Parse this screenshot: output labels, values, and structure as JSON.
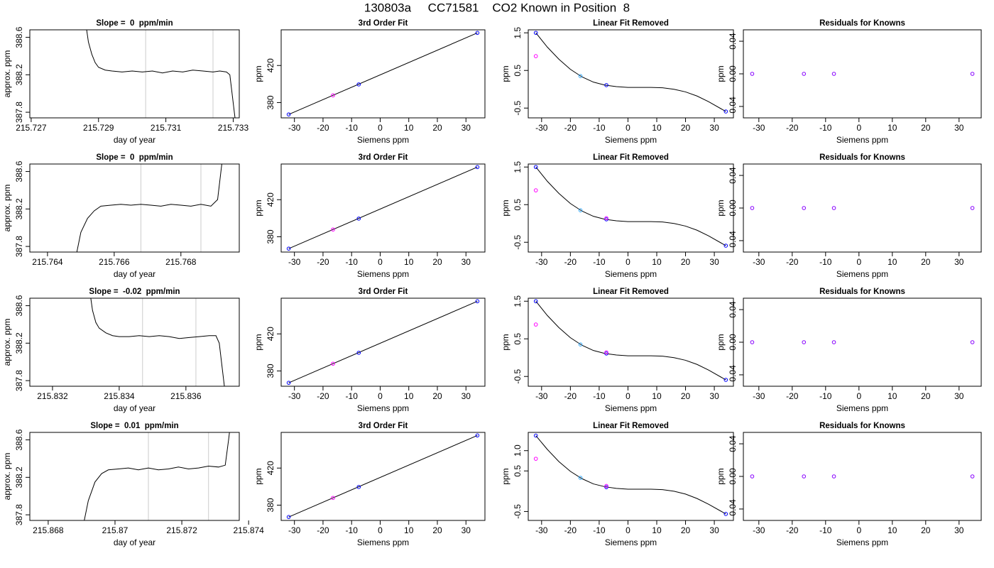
{
  "title": "130803a     CC71581    CO2 Known in Position  8",
  "chart_data": [
    {
      "type": "line",
      "title": "Slope =  0  ppm/min",
      "xlabel": "day of year",
      "ylabel": "approx. ppm",
      "color": "#000000",
      "x": [
        215.7286,
        215.7287,
        215.7288,
        215.7289,
        215.729,
        215.7292,
        215.7294,
        215.7297,
        215.73,
        215.7303,
        215.7306,
        215.7309,
        215.7312,
        215.7315,
        215.7318,
        215.7321,
        215.7324,
        215.7326,
        215.7328,
        215.7329,
        215.733,
        215.7331
      ],
      "values": [
        388.8,
        388.55,
        388.42,
        388.33,
        388.28,
        388.25,
        388.24,
        388.23,
        388.24,
        388.23,
        388.24,
        388.22,
        388.24,
        388.23,
        388.25,
        388.24,
        388.23,
        388.24,
        388.23,
        388.2,
        387.9,
        387.6
      ],
      "vlines": [
        215.7304,
        215.7324
      ],
      "vline_color": "#cccccc",
      "xlim": [
        215.72696,
        215.73318
      ],
      "xticks": [
        215.727,
        215.729,
        215.731,
        215.733
      ],
      "ylim": [
        387.74,
        388.68
      ],
      "yticks": [
        387.8,
        388.2,
        388.6
      ]
    },
    {
      "type": "scatter",
      "title": "3rd Order Fit",
      "xlabel": "Siemens ppm",
      "ylabel": "ppm",
      "series": [
        {
          "mode": "line",
          "color": "#000000",
          "x": [
            -32,
            34
          ],
          "values": [
            367.2,
            455.2
          ]
        },
        {
          "mode": "points",
          "color": "#0000ff",
          "x": [
            -32,
            -7.5,
            34
          ],
          "values": [
            367.2,
            399.6,
            455.2
          ]
        },
        {
          "mode": "points",
          "color": "#ff00ff",
          "x": [
            -16.5
          ],
          "values": [
            387.8
          ]
        }
      ],
      "xlim": [
        -34.64,
        36.64
      ],
      "xticks": [
        -30,
        -20,
        -10,
        0,
        10,
        20,
        30
      ],
      "ylim": [
        363.5,
        458.5
      ],
      "yticks": [
        380,
        420
      ]
    },
    {
      "type": "scatter",
      "title": "Linear Fit Removed",
      "xlabel": "Siemens ppm",
      "ylabel": "ppm",
      "series": [
        {
          "mode": "line",
          "color": "#000000",
          "x": [
            -32,
            -28,
            -24,
            -20,
            -16,
            -12,
            -8,
            -4,
            0,
            4,
            8,
            12,
            16,
            20,
            24,
            28,
            34
          ],
          "values": [
            1.5,
            1.12,
            0.8,
            0.53,
            0.33,
            0.19,
            0.11,
            0.07,
            0.05,
            0.05,
            0.05,
            0.04,
            0.0,
            -0.07,
            -0.18,
            -0.33,
            -0.59
          ]
        },
        {
          "mode": "points",
          "color": "#0000ff",
          "x": [
            -32,
            -7.5,
            34
          ],
          "values": [
            1.5,
            0.11,
            -0.59
          ]
        },
        {
          "mode": "points",
          "color": "#33aaff",
          "x": [
            -16.5
          ],
          "values": [
            0.35
          ]
        },
        {
          "mode": "points",
          "color": "#ff00ff",
          "x": [
            -32
          ],
          "values": [
            0.88
          ]
        }
      ],
      "xlim": [
        -34.64,
        36.64
      ],
      "xticks": [
        -30,
        -20,
        -10,
        0,
        10,
        20,
        30
      ],
      "ylim": [
        -0.76,
        1.58
      ],
      "yticks": [
        -0.5,
        0.5,
        1.5
      ]
    },
    {
      "type": "scatter",
      "title": "Residuals for Knowns",
      "xlabel": "Siemens ppm",
      "ylabel": "ppm",
      "series": [
        {
          "mode": "points",
          "color": "#8800ff",
          "x": [
            -32,
            -16.5,
            -7.5,
            34
          ],
          "values": [
            0,
            0,
            0,
            0
          ]
        }
      ],
      "xlim": [
        -34.64,
        36.64
      ],
      "xticks": [
        -30,
        -20,
        -10,
        0,
        10,
        20,
        30
      ],
      "ylim": [
        -0.054,
        0.054
      ],
      "yticks": [
        -0.04,
        {
          "value": 0,
          "label": "0.00"
        },
        0.04
      ]
    },
    {
      "type": "line",
      "title": "Slope =  0  ppm/min",
      "xlabel": "day of year",
      "ylabel": "approx. ppm",
      "color": "#000000",
      "x": [
        215.7648,
        215.765,
        215.7652,
        215.7654,
        215.7656,
        215.7659,
        215.7662,
        215.7665,
        215.7668,
        215.7671,
        215.7674,
        215.7677,
        215.768,
        215.7683,
        215.7686,
        215.7689,
        215.7691,
        215.7692,
        215.7693
      ],
      "values": [
        387.6,
        387.95,
        388.1,
        388.18,
        388.23,
        388.24,
        388.25,
        388.24,
        388.25,
        388.24,
        388.23,
        388.25,
        388.24,
        388.23,
        388.25,
        388.23,
        388.3,
        388.6,
        388.9
      ],
      "vlines": [
        215.7668,
        215.7686
      ],
      "vline_color": "#cccccc",
      "xlim": [
        215.76347,
        215.76975
      ],
      "xticks": [
        215.764,
        215.766,
        215.768
      ],
      "ylim": [
        387.74,
        388.68
      ],
      "yticks": [
        387.8,
        388.2,
        388.6
      ]
    },
    {
      "type": "scatter",
      "title": "3rd Order Fit",
      "xlabel": "Siemens ppm",
      "ylabel": "ppm",
      "series": [
        {
          "mode": "line",
          "color": "#000000",
          "x": [
            -32,
            34
          ],
          "values": [
            367.2,
            455.2
          ]
        },
        {
          "mode": "points",
          "color": "#0000ff",
          "x": [
            -32,
            -7.5,
            34
          ],
          "values": [
            367.2,
            399.6,
            455.2
          ]
        },
        {
          "mode": "points",
          "color": "#ff00ff",
          "x": [
            -16.5
          ],
          "values": [
            387.8
          ]
        }
      ],
      "xlim": [
        -34.64,
        36.64
      ],
      "xticks": [
        -30,
        -20,
        -10,
        0,
        10,
        20,
        30
      ],
      "ylim": [
        363.5,
        458.5
      ],
      "yticks": [
        380,
        420
      ]
    },
    {
      "type": "scatter",
      "title": "Linear Fit Removed",
      "xlabel": "Siemens ppm",
      "ylabel": "ppm",
      "series": [
        {
          "mode": "line",
          "color": "#000000",
          "x": [
            -32,
            -28,
            -24,
            -20,
            -16,
            -12,
            -8,
            -4,
            0,
            4,
            8,
            12,
            16,
            20,
            24,
            28,
            34
          ],
          "values": [
            1.5,
            1.12,
            0.8,
            0.53,
            0.33,
            0.19,
            0.11,
            0.07,
            0.05,
            0.05,
            0.05,
            0.04,
            0.0,
            -0.07,
            -0.18,
            -0.33,
            -0.59
          ]
        },
        {
          "mode": "points",
          "color": "#0000ff",
          "x": [
            -32,
            -7.5,
            34
          ],
          "values": [
            1.5,
            0.11,
            -0.59
          ]
        },
        {
          "mode": "points",
          "color": "#33aaff",
          "x": [
            -16.5
          ],
          "values": [
            0.35
          ]
        },
        {
          "mode": "points",
          "color": "#ff00ff",
          "x": [
            -32,
            -7.5
          ],
          "values": [
            0.88,
            0.14
          ]
        }
      ],
      "xlim": [
        -34.64,
        36.64
      ],
      "xticks": [
        -30,
        -20,
        -10,
        0,
        10,
        20,
        30
      ],
      "ylim": [
        -0.76,
        1.58
      ],
      "yticks": [
        -0.5,
        0.5,
        1.5
      ]
    },
    {
      "type": "scatter",
      "title": "Residuals for Knowns",
      "xlabel": "Siemens ppm",
      "ylabel": "ppm",
      "series": [
        {
          "mode": "points",
          "color": "#8800ff",
          "x": [
            -32,
            -16.5,
            -7.5,
            34
          ],
          "values": [
            0,
            0,
            0,
            0
          ]
        }
      ],
      "xlim": [
        -34.64,
        36.64
      ],
      "xticks": [
        -30,
        -20,
        -10,
        0,
        10,
        20,
        30
      ],
      "ylim": [
        -0.054,
        0.054
      ],
      "yticks": [
        -0.04,
        {
          "value": 0,
          "label": "0.00"
        },
        0.04
      ]
    },
    {
      "type": "line",
      "title": "Slope =  -0.02  ppm/min",
      "xlabel": "day of year",
      "ylabel": "approx. ppm",
      "color": "#000000",
      "x": [
        215.8331,
        215.8332,
        215.8333,
        215.8334,
        215.8336,
        215.8338,
        215.834,
        215.8343,
        215.8346,
        215.8349,
        215.8352,
        215.8355,
        215.8358,
        215.8361,
        215.8364,
        215.8367,
        215.8369,
        215.837,
        215.8371,
        215.8372
      ],
      "values": [
        388.8,
        388.55,
        388.42,
        388.36,
        388.31,
        388.28,
        388.27,
        388.27,
        388.28,
        388.27,
        388.28,
        388.27,
        388.25,
        388.26,
        388.27,
        388.28,
        388.28,
        388.2,
        387.9,
        387.6
      ],
      "vlines": [
        215.8347,
        215.8363
      ],
      "vline_color": "#cccccc",
      "xlim": [
        215.83132,
        215.8376
      ],
      "xticks": [
        215.832,
        215.834,
        215.836
      ],
      "ylim": [
        387.74,
        388.68
      ],
      "yticks": [
        387.8,
        388.2,
        388.6
      ]
    },
    {
      "type": "scatter",
      "title": "3rd Order Fit",
      "xlabel": "Siemens ppm",
      "ylabel": "ppm",
      "series": [
        {
          "mode": "line",
          "color": "#000000",
          "x": [
            -32,
            34
          ],
          "values": [
            367.2,
            455.2
          ]
        },
        {
          "mode": "points",
          "color": "#0000ff",
          "x": [
            -32,
            -7.5,
            34
          ],
          "values": [
            367.2,
            399.6,
            455.2
          ]
        },
        {
          "mode": "points",
          "color": "#ff00ff",
          "x": [
            -16.5
          ],
          "values": [
            387.8
          ]
        }
      ],
      "xlim": [
        -34.64,
        36.64
      ],
      "xticks": [
        -30,
        -20,
        -10,
        0,
        10,
        20,
        30
      ],
      "ylim": [
        363.5,
        458.5
      ],
      "yticks": [
        380,
        420
      ]
    },
    {
      "type": "scatter",
      "title": "Linear Fit Removed",
      "xlabel": "Siemens ppm",
      "ylabel": "ppm",
      "series": [
        {
          "mode": "line",
          "color": "#000000",
          "x": [
            -32,
            -28,
            -24,
            -20,
            -16,
            -12,
            -8,
            -4,
            0,
            4,
            8,
            12,
            16,
            20,
            24,
            28,
            34
          ],
          "values": [
            1.5,
            1.12,
            0.8,
            0.53,
            0.33,
            0.19,
            0.11,
            0.07,
            0.05,
            0.05,
            0.05,
            0.04,
            0.0,
            -0.07,
            -0.18,
            -0.33,
            -0.59
          ]
        },
        {
          "mode": "points",
          "color": "#0000ff",
          "x": [
            -32,
            -7.5,
            34
          ],
          "values": [
            1.5,
            0.11,
            -0.59
          ]
        },
        {
          "mode": "points",
          "color": "#33aaff",
          "x": [
            -16.5
          ],
          "values": [
            0.35
          ]
        },
        {
          "mode": "points",
          "color": "#ff00ff",
          "x": [
            -32,
            -7.5
          ],
          "values": [
            0.88,
            0.14
          ]
        }
      ],
      "xlim": [
        -34.64,
        36.64
      ],
      "xticks": [
        -30,
        -20,
        -10,
        0,
        10,
        20,
        30
      ],
      "ylim": [
        -0.76,
        1.58
      ],
      "yticks": [
        -0.5,
        0.5,
        1.5
      ]
    },
    {
      "type": "scatter",
      "title": "Residuals for Knowns",
      "xlabel": "Siemens ppm",
      "ylabel": "ppm",
      "series": [
        {
          "mode": "points",
          "color": "#8800ff",
          "x": [
            -32,
            -16.5,
            -7.5,
            34
          ],
          "values": [
            0,
            0,
            0,
            0
          ]
        }
      ],
      "xlim": [
        -34.64,
        36.64
      ],
      "xticks": [
        -30,
        -20,
        -10,
        0,
        10,
        20,
        30
      ],
      "ylim": [
        -0.054,
        0.054
      ],
      "yticks": [
        -0.04,
        {
          "value": 0,
          "label": "0.00"
        },
        0.04
      ]
    },
    {
      "type": "line",
      "title": "Slope =  0.01  ppm/min",
      "xlabel": "day of year",
      "ylabel": "approx. ppm",
      "color": "#000000",
      "x": [
        215.869,
        215.8692,
        215.8694,
        215.8696,
        215.8698,
        215.8701,
        215.8704,
        215.8707,
        215.871,
        215.8713,
        215.8716,
        215.8719,
        215.8722,
        215.8725,
        215.8728,
        215.8731,
        215.8733,
        215.8734,
        215.8735
      ],
      "values": [
        387.6,
        387.95,
        388.15,
        388.24,
        388.28,
        388.29,
        388.3,
        388.28,
        388.3,
        388.28,
        388.29,
        388.31,
        388.29,
        388.3,
        388.32,
        388.31,
        388.33,
        388.6,
        388.9
      ],
      "vlines": [
        215.871,
        215.8728
      ],
      "vline_color": "#cccccc",
      "xlim": [
        215.86745,
        215.87372
      ],
      "xticks": [
        215.868,
        215.87,
        215.872,
        215.874
      ],
      "ylim": [
        387.74,
        388.68
      ],
      "yticks": [
        387.8,
        388.2,
        388.6
      ]
    },
    {
      "type": "scatter",
      "title": "3rd Order Fit",
      "xlabel": "Siemens ppm",
      "ylabel": "ppm",
      "series": [
        {
          "mode": "line",
          "color": "#000000",
          "x": [
            -32,
            34
          ],
          "values": [
            367.2,
            455.2
          ]
        },
        {
          "mode": "points",
          "color": "#0000ff",
          "x": [
            -32,
            -7.5,
            34
          ],
          "values": [
            367.2,
            399.6,
            455.2
          ]
        },
        {
          "mode": "points",
          "color": "#ff00ff",
          "x": [
            -16.5
          ],
          "values": [
            387.8
          ]
        }
      ],
      "xlim": [
        -34.64,
        36.64
      ],
      "xticks": [
        -30,
        -20,
        -10,
        0,
        10,
        20,
        30
      ],
      "ylim": [
        363.5,
        458.5
      ],
      "yticks": [
        380,
        420
      ]
    },
    {
      "type": "scatter",
      "title": "Linear Fit Removed",
      "xlabel": "Siemens ppm",
      "ylabel": "ppm",
      "series": [
        {
          "mode": "line",
          "color": "#000000",
          "x": [
            -32,
            -28,
            -24,
            -20,
            -16,
            -12,
            -8,
            -4,
            0,
            4,
            8,
            12,
            16,
            20,
            24,
            28,
            34
          ],
          "values": [
            1.37,
            1.03,
            0.73,
            0.49,
            0.31,
            0.18,
            0.11,
            0.07,
            0.05,
            0.05,
            0.05,
            0.04,
            0.0,
            -0.07,
            -0.18,
            -0.32,
            -0.56
          ]
        },
        {
          "mode": "points",
          "color": "#0000ff",
          "x": [
            -32,
            -7.5,
            34
          ],
          "values": [
            1.37,
            0.1,
            -0.56
          ]
        },
        {
          "mode": "points",
          "color": "#33aaff",
          "x": [
            -16.5
          ],
          "values": [
            0.33
          ]
        },
        {
          "mode": "points",
          "color": "#ff00ff",
          "x": [
            -32,
            -7.5
          ],
          "values": [
            0.8,
            0.13
          ]
        }
      ],
      "xlim": [
        -34.64,
        36.64
      ],
      "xticks": [
        -30,
        -20,
        -10,
        0,
        10,
        20,
        30
      ],
      "ylim": [
        -0.72,
        1.45
      ],
      "yticks": [
        -0.5,
        0.5,
        {
          "value": 1,
          "label": "1.0"
        }
      ]
    },
    {
      "type": "scatter",
      "title": "Residuals for Knowns",
      "xlabel": "Siemens ppm",
      "ylabel": "ppm",
      "series": [
        {
          "mode": "points",
          "color": "#8800ff",
          "x": [
            -32,
            -16.5,
            -7.5,
            34
          ],
          "values": [
            0,
            0,
            0,
            0
          ]
        }
      ],
      "xlim": [
        -34.64,
        36.64
      ],
      "xticks": [
        -30,
        -20,
        -10,
        0,
        10,
        20,
        30
      ],
      "ylim": [
        -0.054,
        0.054
      ],
      "yticks": [
        -0.04,
        {
          "value": 0,
          "label": "0.00"
        },
        0.04
      ]
    }
  ]
}
